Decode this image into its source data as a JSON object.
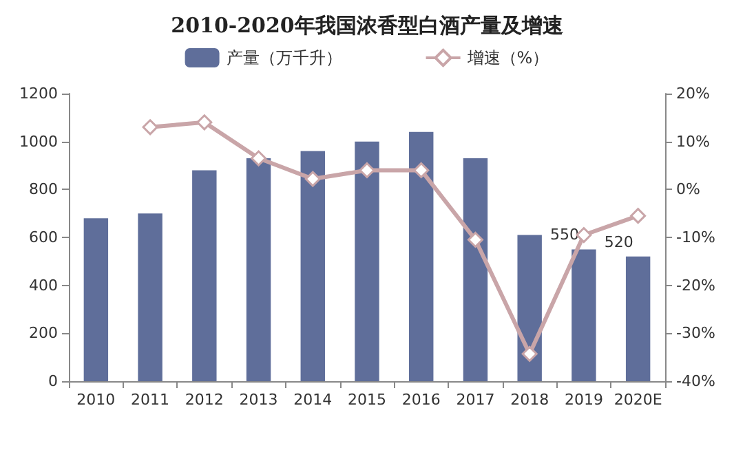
{
  "chart_data": {
    "type": "bar",
    "title": "2010-2020年我国浓香型白酒产量及增速",
    "categories": [
      "2010",
      "2011",
      "2012",
      "2013",
      "2014",
      "2015",
      "2016",
      "2017",
      "2018",
      "2019",
      "2020E"
    ],
    "series": [
      {
        "name": "产量（万千升）",
        "color": "#5f6e9a",
        "values": [
          680,
          700,
          880,
          930,
          960,
          1000,
          1040,
          930,
          610,
          550,
          520
        ],
        "value_labels": [
          null,
          null,
          null,
          null,
          null,
          null,
          null,
          null,
          null,
          "550",
          "520"
        ]
      },
      {
        "name": "增速（%）",
        "type": "line",
        "axis": "y2",
        "color": "#c9a5a8",
        "marker": "diamond",
        "values": [
          null,
          13,
          14,
          6.5,
          2.2,
          4,
          4,
          -10.5,
          -34.3,
          -9.5,
          -5.5
        ]
      }
    ],
    "ylim": [
      0,
      1200
    ],
    "yticks": [
      0,
      200,
      400,
      600,
      800,
      1000,
      1200
    ],
    "y2lim": [
      -40,
      20
    ],
    "y2ticks": [
      {
        "value": -40,
        "label": "-40%"
      },
      {
        "value": -30,
        "label": "-30%"
      },
      {
        "value": -20,
        "label": "-20%"
      },
      {
        "value": -10,
        "label": "-10%"
      },
      {
        "value": 0,
        "label": "0%"
      },
      {
        "value": 10,
        "label": "10%"
      },
      {
        "value": 20,
        "label": "20%"
      }
    ],
    "legend": "top",
    "grid": false
  }
}
